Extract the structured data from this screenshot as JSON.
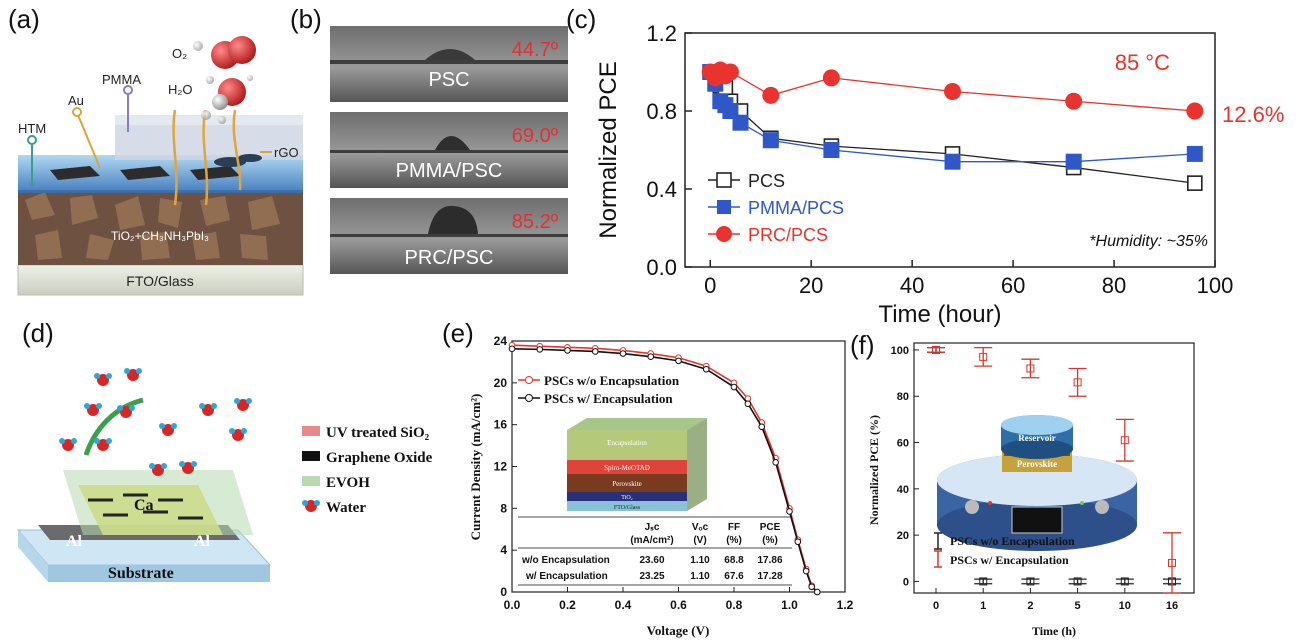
{
  "panels": {
    "a": "(a)",
    "b": "(b)",
    "c": "(c)",
    "d": "(d)",
    "e": "(e)",
    "f": "(f)"
  },
  "panel_a": {
    "labels": {
      "o2": "O₂",
      "h2o": "H₂O",
      "pmma": "PMMA",
      "au": "Au",
      "htm": "HTM",
      "rgo": "rGO",
      "active": "TiO₂+CH₃NH₃PbI₃",
      "substrate": "FTO/Glass"
    },
    "colors": {
      "sphere_red": "#d92b2b",
      "glass": "#d9e4d6",
      "perovskite": "#7a5c48",
      "electrolyte": "#3b7fbf"
    }
  },
  "panel_b": {
    "images": [
      {
        "label": "PSC",
        "angle": "44.7º"
      },
      {
        "label": "PMMA/PSC",
        "angle": "69.0º"
      },
      {
        "label": "PRC/PSC",
        "angle": "85.2º"
      }
    ],
    "angle_color": "#e53030"
  },
  "panel_d": {
    "legend": [
      {
        "label": "UV treated SiO₂",
        "color": "#e88a8a"
      },
      {
        "label": "Graphene Oxide",
        "color": "#111111"
      },
      {
        "label": "EVOH",
        "color": "#b6dbb0"
      },
      {
        "label": "Water",
        "color": "#d62626"
      }
    ],
    "device_labels": {
      "ca": "Ca",
      "al_left": "Al",
      "al_right": "Al",
      "substrate": "Substrate"
    }
  },
  "chart_data": [
    {
      "id": "c",
      "type": "line",
      "xlabel": "Time (hour)",
      "ylabel": "Normalized PCE",
      "xlim": [
        -5,
        100
      ],
      "ylim": [
        0.0,
        1.2
      ],
      "xticks": [
        0,
        20,
        40,
        60,
        80,
        100
      ],
      "yticks": [
        0.0,
        0.4,
        0.8,
        1.2
      ],
      "series": [
        {
          "name": "PCS",
          "color": "#222222",
          "marker": "open-square",
          "x": [
            0,
            1,
            2,
            3,
            4,
            6,
            12,
            24,
            48,
            72,
            96
          ],
          "y": [
            1.0,
            0.97,
            0.93,
            0.92,
            0.85,
            0.8,
            0.66,
            0.62,
            0.58,
            0.51,
            0.43
          ]
        },
        {
          "name": "PMMA/PCS",
          "color": "#2f57c8",
          "marker": "filled-square",
          "x": [
            0,
            1,
            2,
            3,
            4,
            6,
            12,
            24,
            48,
            72,
            96
          ],
          "y": [
            1.0,
            0.94,
            0.85,
            0.83,
            0.8,
            0.74,
            0.65,
            0.6,
            0.54,
            0.54,
            0.58
          ]
        },
        {
          "name": "PRC/PCS",
          "color": "#e8332e",
          "marker": "filled-circle",
          "x": [
            0,
            1,
            2,
            3,
            4,
            12,
            24,
            48,
            72,
            96
          ],
          "y": [
            1.0,
            0.97,
            1.01,
            0.98,
            1.0,
            0.88,
            0.97,
            0.9,
            0.85,
            0.8
          ]
        }
      ],
      "annotations": {
        "temperature": "85 °C",
        "final_value": "12.6%",
        "humidity": "*Humidity: ~35%"
      },
      "legend_position": "bottom-left"
    },
    {
      "id": "e",
      "type": "line",
      "xlabel": "Voltage (V)",
      "ylabel": "Current Density (mA/cm²)",
      "xlim": [
        0.0,
        1.2
      ],
      "ylim": [
        0,
        24
      ],
      "xticks": [
        0.0,
        0.2,
        0.4,
        0.6,
        0.8,
        1.0,
        1.2
      ],
      "yticks": [
        0,
        4,
        8,
        12,
        16,
        20,
        24
      ],
      "series": [
        {
          "name": "PSCs w/o Encapsulation",
          "color": "#e8332e",
          "x": [
            0.0,
            0.1,
            0.2,
            0.3,
            0.4,
            0.5,
            0.6,
            0.7,
            0.8,
            0.85,
            0.9,
            0.95,
            1.0,
            1.03,
            1.06,
            1.08,
            1.1
          ],
          "y": [
            23.6,
            23.5,
            23.4,
            23.3,
            23.1,
            22.8,
            22.4,
            21.6,
            20.0,
            18.5,
            16.2,
            12.8,
            8.0,
            5.0,
            2.2,
            0.6,
            0.0
          ]
        },
        {
          "name": "PSCs w/ Encapsulation",
          "color": "#111111",
          "x": [
            0.0,
            0.1,
            0.2,
            0.3,
            0.4,
            0.5,
            0.6,
            0.7,
            0.8,
            0.85,
            0.9,
            0.95,
            1.0,
            1.03,
            1.06,
            1.08,
            1.1
          ],
          "y": [
            23.25,
            23.2,
            23.1,
            23.0,
            22.8,
            22.5,
            22.1,
            21.3,
            19.6,
            18.0,
            15.8,
            12.4,
            7.7,
            4.8,
            2.0,
            0.5,
            0.0
          ]
        }
      ],
      "inset_layers": [
        "Encapsulation",
        "Spiro-MeOTAD",
        "Perovskite",
        "TiO₂",
        "FTO/Glass"
      ],
      "table": {
        "headers": [
          "",
          "Jₛᴄ",
          "Vₒᴄ",
          "FF",
          "PCE"
        ],
        "units": [
          "",
          "(mA/cm²)",
          "(V)",
          "(%)",
          "(%)"
        ],
        "rows": [
          [
            "w/o Encapsulation",
            "23.60",
            "1.10",
            "68.8",
            "17.86"
          ],
          [
            "w/ Encapsulation",
            "23.25",
            "1.10",
            "67.6",
            "17.28"
          ]
        ]
      }
    },
    {
      "id": "f",
      "type": "scatter",
      "xlabel": "Time (h)",
      "ylabel": "Normalized PCE (%)",
      "categories": [
        "0",
        "1",
        "2",
        "5",
        "10",
        "16"
      ],
      "ylim": [
        -5,
        103
      ],
      "yticks": [
        0,
        20,
        40,
        60,
        80,
        100
      ],
      "series": [
        {
          "name": "PSCs w/o Encapsulation",
          "color": "#222222",
          "values": [
            100,
            0,
            0,
            0,
            0,
            0
          ],
          "errors": [
            1,
            1,
            1,
            1,
            1,
            1
          ]
        },
        {
          "name": "PSCs w/ Encapsulation",
          "color": "#d6372c",
          "values": [
            100,
            97,
            92,
            86,
            61,
            8
          ],
          "errors": [
            1,
            4,
            4,
            6,
            9,
            13
          ]
        }
      ],
      "inset_labels": {
        "reservoir": "Reservoir",
        "perovskite": "Perovskite"
      }
    }
  ]
}
